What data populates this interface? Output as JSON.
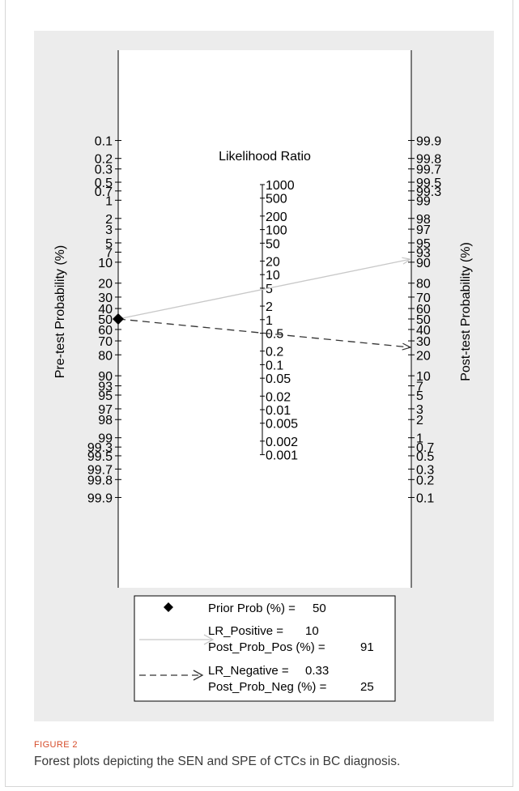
{
  "chart_data": {
    "type": "nomogram",
    "title": "Likelihood Ratio",
    "left_axis": {
      "label": "Pre-test Probability (%)",
      "ticks": [
        "0.1",
        "0.2",
        "0.3",
        "0.5",
        "0.7",
        "1",
        "2",
        "3",
        "5",
        "7",
        "10",
        "20",
        "30",
        "40",
        "50",
        "60",
        "70",
        "80",
        "90",
        "93",
        "95",
        "97",
        "98",
        "99",
        "99.3",
        "99.5",
        "99.7",
        "99.8",
        "99.9"
      ]
    },
    "right_axis": {
      "label": "Post-test Probability (%)",
      "ticks": [
        "99.9",
        "99.8",
        "99.7",
        "99.5",
        "99.3",
        "99",
        "98",
        "97",
        "95",
        "93",
        "90",
        "80",
        "70",
        "60",
        "50",
        "40",
        "30",
        "20",
        "10",
        "7",
        "5",
        "3",
        "2",
        "1",
        "0.7",
        "0.5",
        "0.3",
        "0.2",
        "0.1"
      ]
    },
    "lr_axis": {
      "ticks": [
        "1000",
        "500",
        "200",
        "100",
        "50",
        "20",
        "10",
        "5",
        "2",
        "1",
        "0.5",
        "0.2",
        "0.1",
        "0.05",
        "0.02",
        "0.01",
        "0.005",
        "0.002",
        "0.001"
      ]
    },
    "prior_prob_pct": 50,
    "lr_positive": 10,
    "post_prob_pos_pct": 91,
    "lr_negative": 0.33,
    "post_prob_neg_pct": 25,
    "legend": {
      "prior_label": "Prior Prob (%) =",
      "prior_value": "50",
      "lr_pos_label": "LR_Positive =",
      "lr_pos_value": "10",
      "post_pos_label": "Post_Prob_Pos (%) =",
      "post_pos_value": "91",
      "lr_neg_label": "LR_Negative =",
      "lr_neg_value": "0.33",
      "post_neg_label": "Post_Prob_Neg (%) =",
      "post_neg_value": "25"
    },
    "colors": {
      "positive_line": "#c8c8c8",
      "negative_line": "#333333",
      "axis": "#000000",
      "plot_bg": "#ececec"
    }
  },
  "caption": {
    "label": "FIGURE 2",
    "text": "Forest plots depicting the SEN and SPE of CTCs in BC diagnosis."
  }
}
